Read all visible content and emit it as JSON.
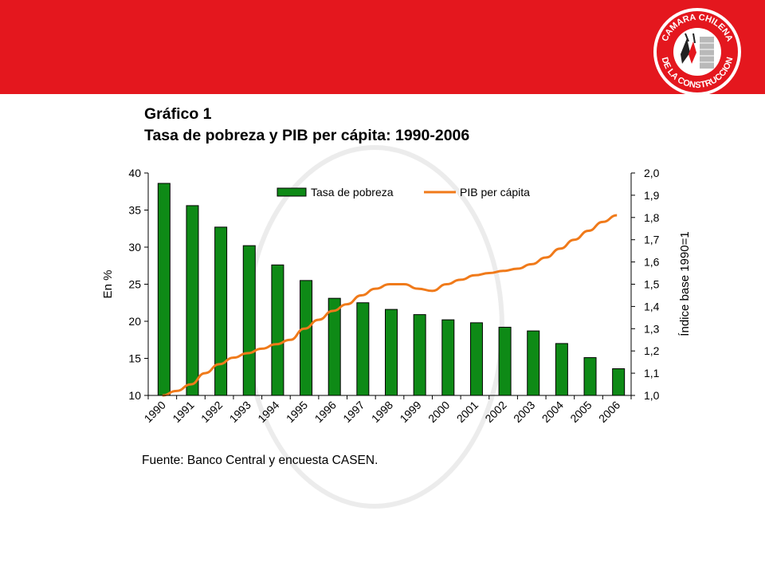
{
  "colors": {
    "band": "#e4171e",
    "bar": "#0e8a16",
    "line": "#f07a1a",
    "watermark": "#d9d9d9"
  },
  "logo": {
    "text_top": "CAMARA CHILENA",
    "text_bottom": "DE LA CONSTRUCCION"
  },
  "title": {
    "line1": "Gráfico 1",
    "line2": "Tasa de pobreza y PIB per cápita: 1990-2006"
  },
  "source": "Fuente: Banco Central y encuesta CASEN.",
  "chart_data": {
    "type": "bar+line",
    "categories": [
      "1990",
      "1991",
      "1992",
      "1993",
      "1994",
      "1995",
      "1996",
      "1997",
      "1998",
      "1999",
      "2000",
      "2001",
      "2002",
      "2003",
      "2004",
      "2005",
      "2006"
    ],
    "series": [
      {
        "name": "Tasa de pobreza",
        "type": "bar",
        "axis": "left",
        "values": [
          38.6,
          35.6,
          32.7,
          30.2,
          27.6,
          25.5,
          23.1,
          22.5,
          21.6,
          20.9,
          20.2,
          19.8,
          19.2,
          18.7,
          17.0,
          15.1,
          13.6
        ]
      },
      {
        "name": "PIB per cápita",
        "type": "line",
        "axis": "right",
        "x": [
          1990.0,
          1990.5,
          1991.0,
          1991.5,
          1992.0,
          1992.5,
          1993.0,
          1993.5,
          1994.0,
          1994.5,
          1995.0,
          1995.5,
          1996.0,
          1996.5,
          1997.0,
          1997.5,
          1998.0,
          1998.5,
          1999.0,
          1999.5,
          2000.0,
          2000.5,
          2001.0,
          2001.5,
          2002.0,
          2002.5,
          2003.0,
          2003.5,
          2004.0,
          2004.5,
          2005.0,
          2005.5,
          2006.0
        ],
        "values": [
          1.0,
          1.02,
          1.05,
          1.1,
          1.14,
          1.17,
          1.19,
          1.21,
          1.23,
          1.25,
          1.3,
          1.34,
          1.38,
          1.41,
          1.45,
          1.48,
          1.5,
          1.5,
          1.48,
          1.47,
          1.5,
          1.52,
          1.54,
          1.55,
          1.56,
          1.57,
          1.59,
          1.62,
          1.66,
          1.7,
          1.74,
          1.78,
          1.81
        ]
      }
    ],
    "y_left": {
      "label": "En %",
      "ylim": [
        10,
        40
      ],
      "ticks": [
        "10",
        "15",
        "20",
        "25",
        "30",
        "35",
        "40"
      ]
    },
    "y_right": {
      "label": "Índice base 1990=1",
      "ylim": [
        1.0,
        2.0
      ],
      "ticks": [
        "1,0",
        "1,1",
        "1,2",
        "1,3",
        "1,4",
        "1,5",
        "1,6",
        "1,7",
        "1,8",
        "1,9",
        "2,0"
      ]
    },
    "grid": false,
    "legend": "top-center"
  }
}
